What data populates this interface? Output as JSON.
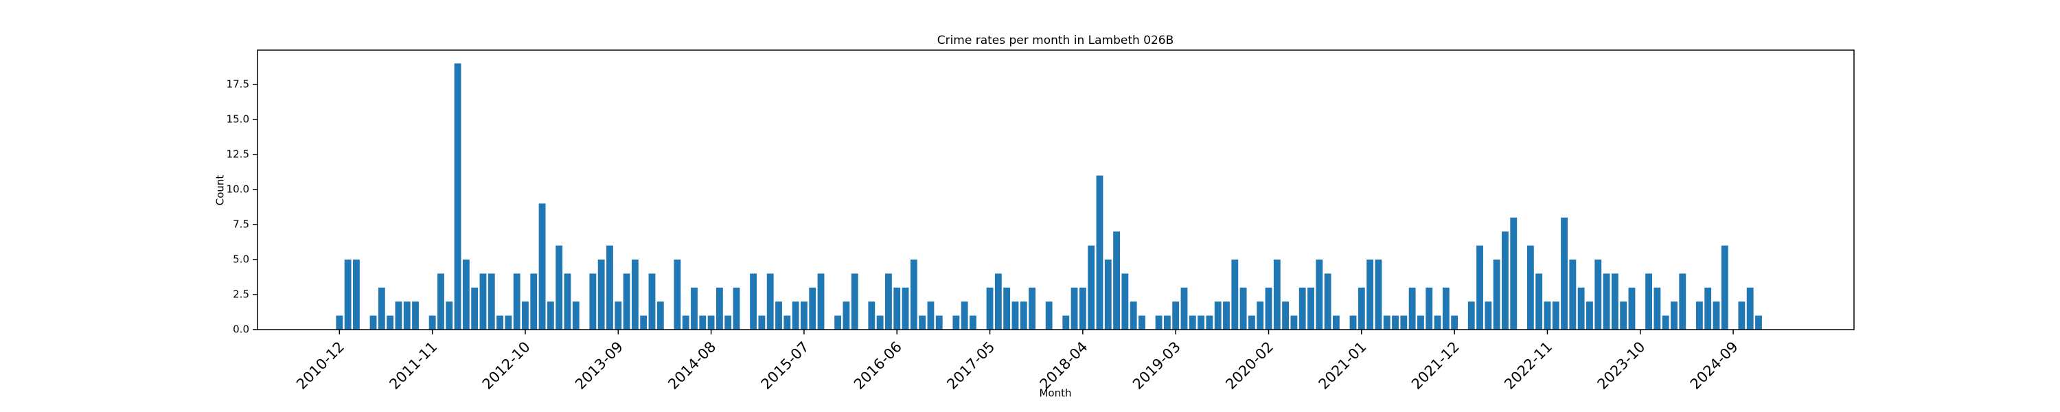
{
  "chart_data": {
    "type": "bar",
    "title": "Crime rates per month in Lambeth 026B",
    "xlabel": "Month",
    "ylabel": "Count",
    "categories": [
      "2010-12",
      null,
      null,
      null,
      null,
      null,
      null,
      null,
      null,
      null,
      null,
      "2011-11",
      null,
      null,
      null,
      null,
      null,
      null,
      null,
      null,
      null,
      null,
      "2012-10",
      null,
      null,
      null,
      null,
      null,
      null,
      null,
      null,
      null,
      null,
      "2013-09",
      null,
      null,
      null,
      null,
      null,
      null,
      null,
      null,
      null,
      null,
      "2014-08",
      null,
      null,
      null,
      null,
      null,
      null,
      null,
      null,
      null,
      null,
      "2015-07",
      null,
      null,
      null,
      null,
      null,
      null,
      null,
      null,
      null,
      null,
      "2016-06",
      null,
      null,
      null,
      null,
      null,
      null,
      null,
      null,
      null,
      null,
      "2017-05",
      null,
      null,
      null,
      null,
      null,
      null,
      null,
      null,
      null,
      null,
      "2018-04",
      null,
      null,
      null,
      null,
      null,
      null,
      null,
      null,
      null,
      null,
      "2019-03",
      null,
      null,
      null,
      null,
      null,
      null,
      null,
      null,
      null,
      null,
      "2020-02",
      null,
      null,
      null,
      null,
      null,
      null,
      null,
      null,
      null,
      null,
      "2021-01",
      null,
      null,
      null,
      null,
      null,
      null,
      null,
      null,
      null,
      null,
      "2021-12",
      null,
      null,
      null,
      null,
      null,
      null,
      null,
      null,
      null,
      null,
      "2022-11",
      null,
      null,
      null,
      null,
      null,
      null,
      null,
      null,
      null,
      null,
      "2023-10",
      null,
      null,
      null,
      null,
      null,
      null,
      null,
      null,
      null,
      null,
      "2024-09",
      null,
      null,
      null
    ],
    "values": [
      1,
      5,
      5,
      null,
      1,
      3,
      1,
      2,
      2,
      2,
      null,
      1,
      4,
      2,
      19,
      5,
      3,
      4,
      4,
      1,
      1,
      4,
      2,
      4,
      9,
      2,
      6,
      4,
      2,
      null,
      4,
      5,
      6,
      2,
      4,
      5,
      1,
      4,
      2,
      null,
      5,
      1,
      3,
      1,
      1,
      3,
      1,
      3,
      null,
      4,
      1,
      4,
      2,
      1,
      2,
      2,
      3,
      4,
      null,
      1,
      2,
      4,
      null,
      2,
      1,
      4,
      3,
      3,
      5,
      1,
      2,
      1,
      null,
      1,
      2,
      1,
      null,
      3,
      4,
      3,
      2,
      2,
      3,
      null,
      2,
      null,
      1,
      3,
      3,
      6,
      11,
      5,
      7,
      4,
      2,
      1,
      null,
      1,
      1,
      2,
      3,
      1,
      1,
      1,
      2,
      2,
      5,
      3,
      1,
      2,
      3,
      5,
      2,
      1,
      3,
      3,
      5,
      4,
      1,
      null,
      1,
      3,
      5,
      5,
      1,
      1,
      1,
      3,
      1,
      3,
      1,
      3,
      1,
      null,
      2,
      6,
      2,
      5,
      7,
      8,
      null,
      6,
      4,
      2,
      2,
      8,
      5,
      3,
      2,
      5,
      4,
      4,
      2,
      3,
      null,
      4,
      3,
      1,
      2,
      4,
      null,
      2,
      3,
      2,
      6,
      null,
      2,
      3,
      1
    ],
    "color": "#1f77b4",
    "ylim": [
      0,
      19.95
    ],
    "yticks": [
      {
        "value": 0,
        "label": "0.0"
      },
      {
        "value": 2.5,
        "label": "2.5"
      },
      {
        "value": 5,
        "label": "5.0"
      },
      {
        "value": 7.5,
        "label": "7.5"
      },
      {
        "value": 10,
        "label": "10.0"
      },
      {
        "value": 12.5,
        "label": "12.5"
      },
      {
        "value": 15,
        "label": "15.0"
      },
      {
        "value": 17.5,
        "label": "17.5"
      }
    ],
    "grid": false
  }
}
